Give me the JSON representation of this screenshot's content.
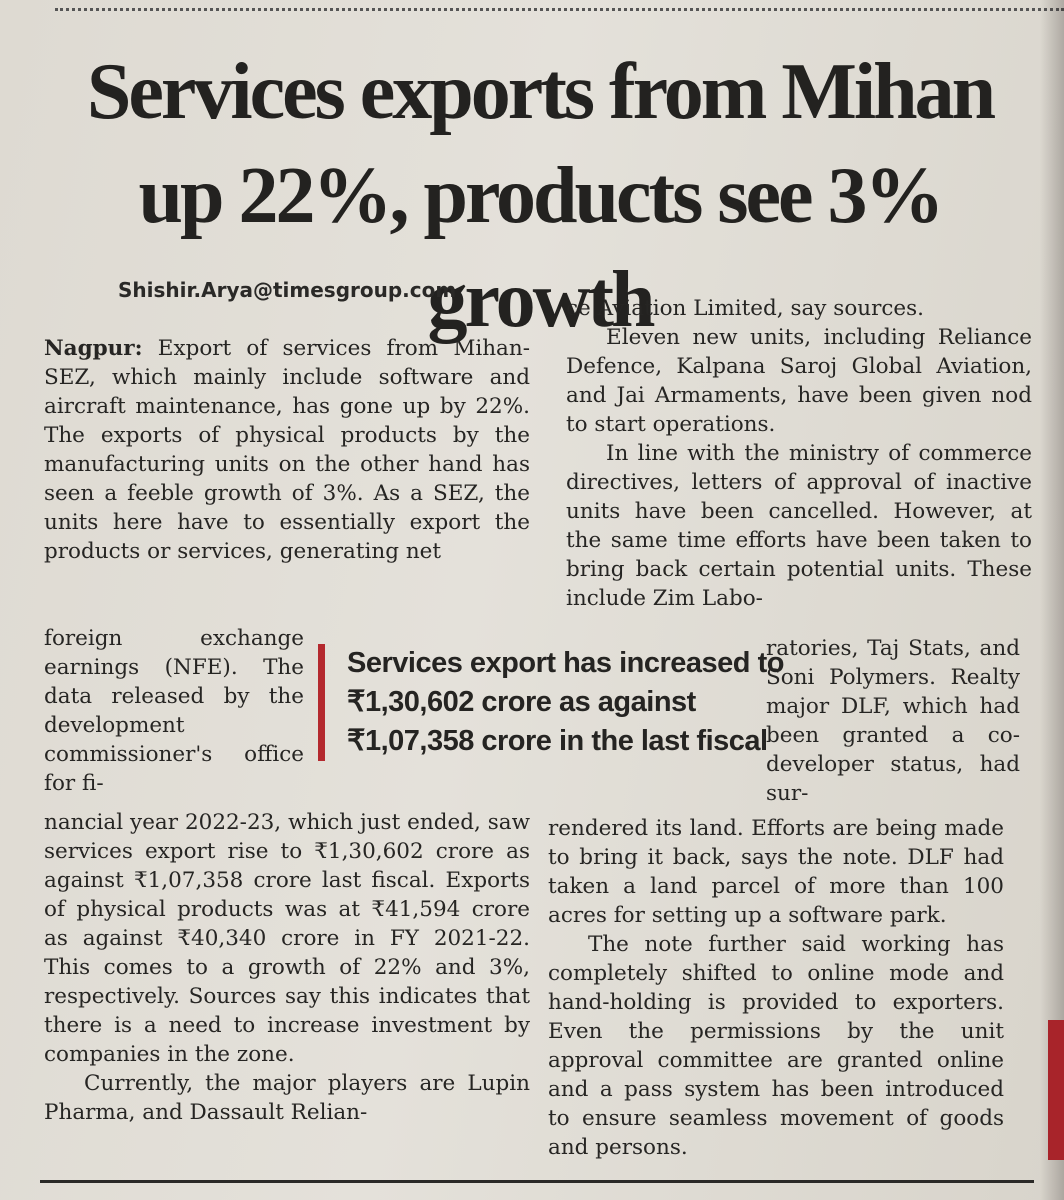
{
  "article": {
    "headline": "Services exports from Mihan up 22%, products see 3% growth",
    "byline": "Shishir.Arya@timesgroup.com",
    "dateline": "Nagpur:",
    "col1_top": "Export of services from Mihan-SEZ, which mainly include software and aircraft maintenance, has gone up by 22%. The exports of physical products by the manufacturing units on the other hand has seen a feeble growth of 3%. As a SEZ, the units here have to essentially export the products or services, generating net",
    "col1_wrap": "foreign exchange earnings (NFE). The data released by the development commissioner's office for fi-",
    "col1_bottom_a": "nancial year 2022-23, which just ended, saw services export rise to ₹1,30,602 crore as against ₹1,07,358 crore last fiscal. Exports of physical products was at ₹41,594 crore as against ₹40,340 crore in FY 2021-22. This comes to a growth of 22% and 3%, respectively. Sources say this indicates that there is a need to increase investment by companies in the zone.",
    "col1_bottom_b": "Currently, the major players are Lupin Pharma, and Dassault Relian-",
    "col2_top_a": "ce Aviation Limited, say sources.",
    "col2_top_b": "Eleven new units, including Reliance Defence, Kalpana Saroj Global Aviation, and Jai Armaments, have been given nod to start operations.",
    "col2_top_c": "In line with the ministry of commerce directives, letters of approval of inactive units have been cancelled. However, at the same time efforts have been taken to bring back certain potential units. These include Zim Labo-",
    "col2_wrap": "ratories, Taj Stats, and Soni Polymers. Realty major DLF, which had been granted a co-developer status, had sur-",
    "col2_bottom_a": "rendered its land. Efforts are being made to bring it back, says the note. DLF had taken a land parcel of more than 100 acres for setting up a software park.",
    "col2_bottom_b": "The note further said working has completely shifted to online mode and hand-holding is provided to exporters. Even the permissions by the unit approval committee are granted online and a pass system has been introduced to ensure seamless movement of goods and persons."
  },
  "pullquote": {
    "text": "Services export has increased to ₹1,30,602 crore as against ₹1,07,358 crore in the last fiscal",
    "accent_color": "#b4292e"
  }
}
